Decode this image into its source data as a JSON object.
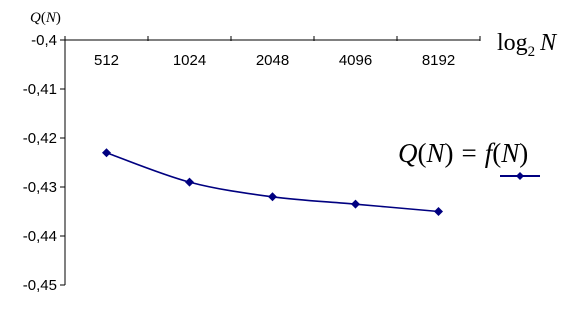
{
  "chart_data": {
    "type": "line",
    "x_axis": {
      "title": {
        "pre": "log",
        "sub": "2",
        "var": "N"
      },
      "position": "top"
    },
    "y_axis": {
      "title": {
        "fn": "Q",
        "open": "(",
        "var": "N",
        "close": ")"
      },
      "ylim": [
        -0.45,
        -0.4
      ],
      "ticks": [
        -0.4,
        -0.41,
        -0.42,
        -0.43,
        -0.44,
        -0.45
      ],
      "tick_labels": [
        "-0,4",
        "-0,41",
        "-0,42",
        "-0,43",
        "-0,44",
        "-0,45"
      ]
    },
    "categories": [
      "512",
      "1024",
      "2048",
      "4096",
      "8192"
    ],
    "series": [
      {
        "name": "Q(N) = f(N)",
        "values": [
          -0.423,
          -0.429,
          -0.432,
          -0.4335,
          -0.435
        ],
        "color": "#000080",
        "marker": "diamond"
      }
    ],
    "legend": {
      "placement": "right",
      "parts": {
        "lhs_fn": "Q",
        "lhs_open": "(",
        "lhs_var": "N",
        "lhs_close": ")",
        "eq": "=",
        "rhs_fn": "f",
        "rhs_open": "(",
        "rhs_var": "N",
        "rhs_close": ")"
      }
    },
    "grid": false
  }
}
